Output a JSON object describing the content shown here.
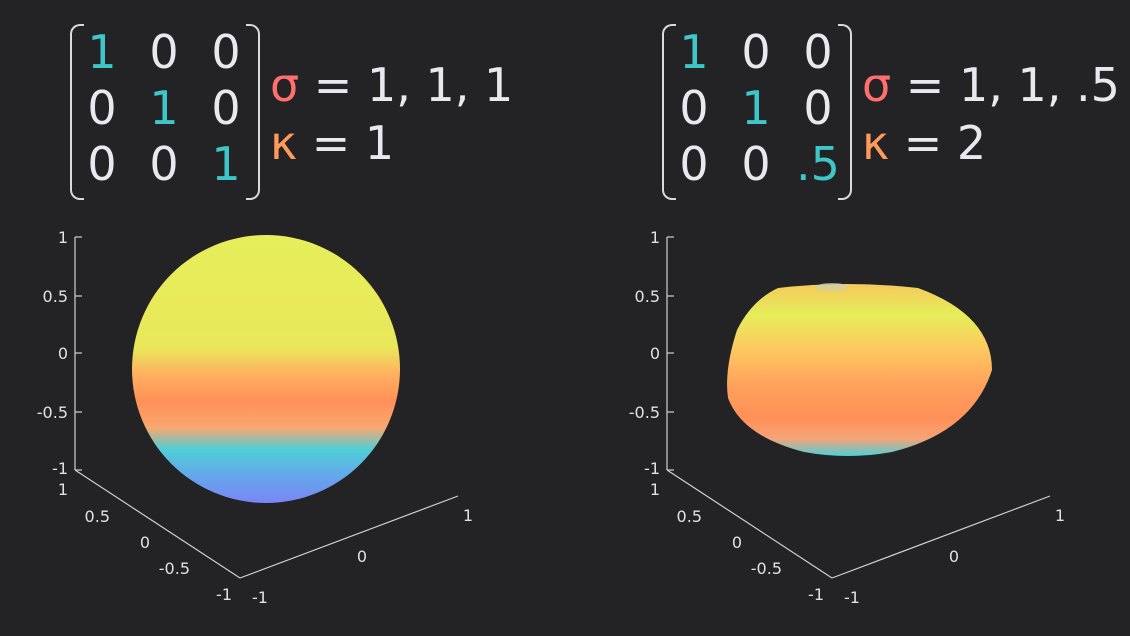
{
  "panels": [
    {
      "matrix": [
        [
          "1",
          "0",
          "0"
        ],
        [
          "0",
          "1",
          "0"
        ],
        [
          "0",
          "0",
          "1"
        ]
      ],
      "sigma_symbol": "σ",
      "sigma_text": " = 1, 1, 1",
      "kappa_symbol": "κ",
      "kappa_text": " = 1",
      "z_ticks": [
        "1",
        "0.5",
        "0",
        "-0.5",
        "-1"
      ],
      "y_ticks": [
        "1",
        "0.5",
        "0",
        "-0.5",
        "-1"
      ],
      "x_ticks": [
        "-1",
        "0",
        "1"
      ],
      "shape": "sphere",
      "sigma_values": [
        1,
        1,
        1
      ],
      "kappa": 1
    },
    {
      "matrix": [
        [
          "1",
          "0",
          "0"
        ],
        [
          "0",
          "1",
          "0"
        ],
        [
          "0",
          "0",
          ".5"
        ]
      ],
      "sigma_symbol": "σ",
      "sigma_text": " = 1, 1, .5",
      "kappa_symbol": "κ",
      "kappa_text": " = 2",
      "z_ticks": [
        "1",
        "0.5",
        "0",
        "-0.5",
        "-1"
      ],
      "y_ticks": [
        "1",
        "0.5",
        "0",
        "-0.5",
        "-1"
      ],
      "x_ticks": [
        "-1",
        "0",
        "1"
      ],
      "shape": "oblate-ellipsoid",
      "sigma_values": [
        1,
        1,
        0.5
      ],
      "kappa": 2
    }
  ],
  "colors": {
    "background": "#232224",
    "diagonal": "#3ec7c9",
    "sigma": "#ff6f6f",
    "kappa": "#ff9a5a",
    "surface_top": "#e6ee5a",
    "surface_mid": "#ff9058",
    "surface_low": "#4fcfd6",
    "surface_bottom": "#7a86f5"
  }
}
